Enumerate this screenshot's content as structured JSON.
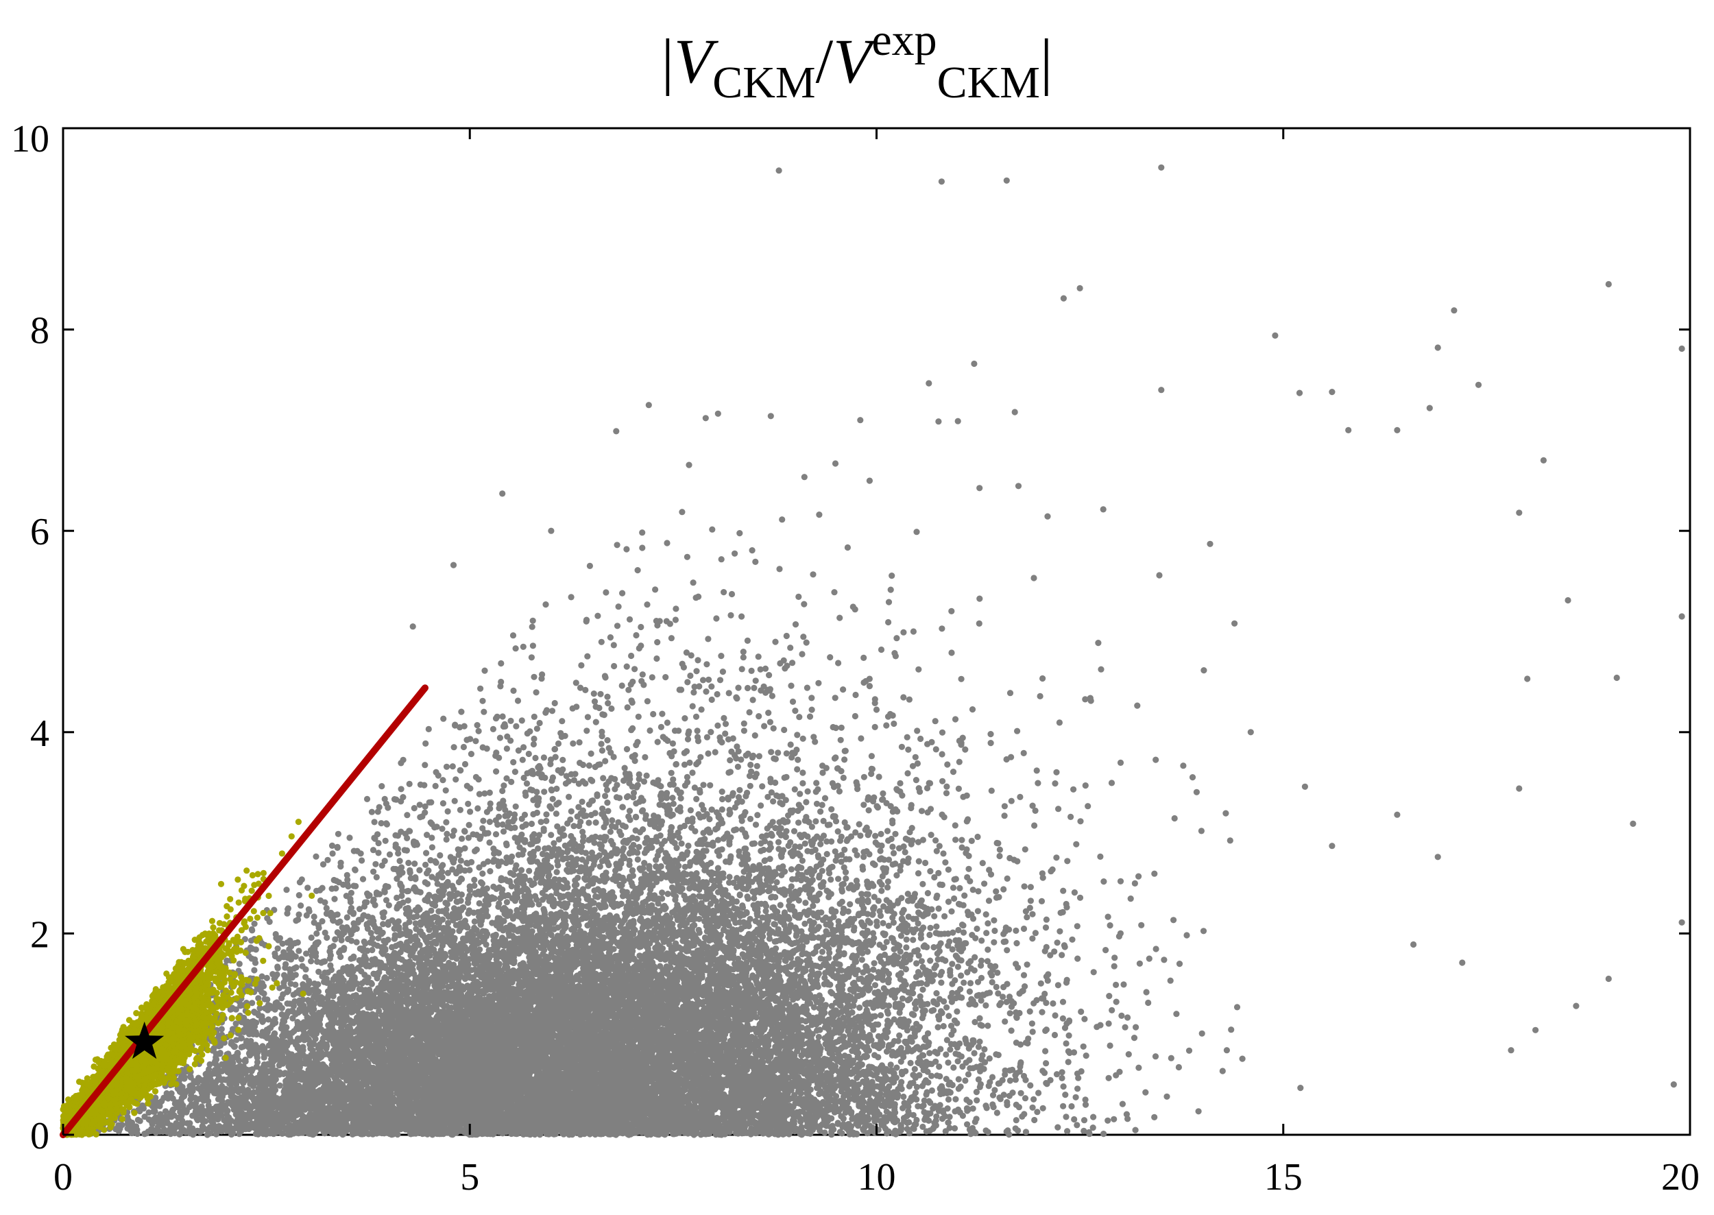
{
  "chart_data": {
    "type": "scatter",
    "title": {
      "open_bar": "|",
      "v1": "V",
      "v1_sub": "CKM",
      "slash": "/",
      "v2": "V",
      "v2_sup": "exp",
      "v2_sub": "CKM",
      "close_bar": "|"
    },
    "xlabel": "",
    "ylabel": "",
    "xlim": [
      0,
      20
    ],
    "ylim": [
      0,
      10
    ],
    "x_ticks": [
      0,
      5,
      10,
      15,
      20
    ],
    "y_ticks": [
      0,
      2,
      4,
      6,
      8,
      10
    ],
    "x_tick_labels": [
      "0",
      "5",
      "10",
      "15",
      "20"
    ],
    "y_tick_labels": [
      "0",
      "2",
      "4",
      "6",
      "8",
      "10"
    ],
    "grid": false,
    "legend": "none",
    "series": [
      {
        "kind": "scatter-cloud",
        "color": "#808080",
        "points": [
          [
            8.8,
            9.58
          ],
          [
            10.8,
            9.47
          ],
          [
            11.6,
            9.48
          ],
          [
            13.5,
            9.61
          ],
          [
            12.3,
            8.31
          ],
          [
            12.5,
            8.41
          ],
          [
            19.0,
            8.45
          ],
          [
            19.9,
            7.81
          ],
          [
            17.1,
            8.19
          ],
          [
            16.9,
            7.82
          ],
          [
            14.9,
            7.94
          ],
          [
            11.2,
            7.66
          ],
          [
            13.5,
            7.4
          ],
          [
            15.2,
            7.37
          ],
          [
            15.6,
            7.38
          ],
          [
            17.4,
            7.45
          ],
          [
            7.2,
            7.25
          ],
          [
            8.7,
            7.14
          ],
          [
            9.8,
            7.1
          ],
          [
            6.8,
            6.99
          ],
          [
            7.9,
            7.12
          ],
          [
            11.0,
            7.09
          ],
          [
            11.7,
            7.18
          ],
          [
            15.8,
            7.0
          ],
          [
            16.4,
            7.0
          ],
          [
            16.8,
            7.22
          ],
          [
            18.2,
            6.7
          ],
          [
            17.9,
            6.18
          ],
          [
            19.9,
            5.15
          ],
          [
            19.1,
            4.54
          ],
          [
            18.5,
            5.31
          ],
          [
            18.0,
            4.53
          ],
          [
            17.9,
            3.44
          ],
          [
            19.3,
            3.09
          ],
          [
            19.9,
            2.11
          ],
          [
            19.0,
            1.55
          ],
          [
            18.6,
            1.28
          ],
          [
            19.8,
            0.5
          ],
          [
            14.1,
            5.87
          ],
          [
            5.4,
            6.37
          ],
          [
            6.0,
            6.0
          ],
          [
            4.8,
            5.66
          ],
          [
            4.3,
            5.05
          ],
          [
            14.4,
            5.08
          ],
          [
            14.6,
            4.0
          ],
          [
            16.4,
            3.18
          ],
          [
            16.9,
            2.76
          ],
          [
            15.6,
            2.87
          ],
          [
            16.6,
            1.89
          ],
          [
            17.2,
            1.71
          ],
          [
            18.1,
            1.04
          ],
          [
            17.8,
            0.84
          ]
        ],
        "cloud": {
          "center": [
            6.2,
            1.2
          ],
          "spread": [
            2.4,
            1.0
          ],
          "count": 22000
        }
      },
      {
        "kind": "scatter-cloud",
        "color": "#a9a900",
        "cloud": {
          "center": [
            0.9,
            0.8
          ],
          "spread": [
            0.55,
            0.6
          ],
          "count": 4500,
          "upper_x": 3.5
        }
      },
      {
        "kind": "line",
        "color": "#b30000",
        "x": [
          0,
          4.45
        ],
        "y": [
          0,
          4.44
        ]
      },
      {
        "kind": "marker",
        "shape": "star",
        "color": "#000000",
        "x": [
          1.0
        ],
        "y": [
          0.92
        ]
      }
    ]
  }
}
